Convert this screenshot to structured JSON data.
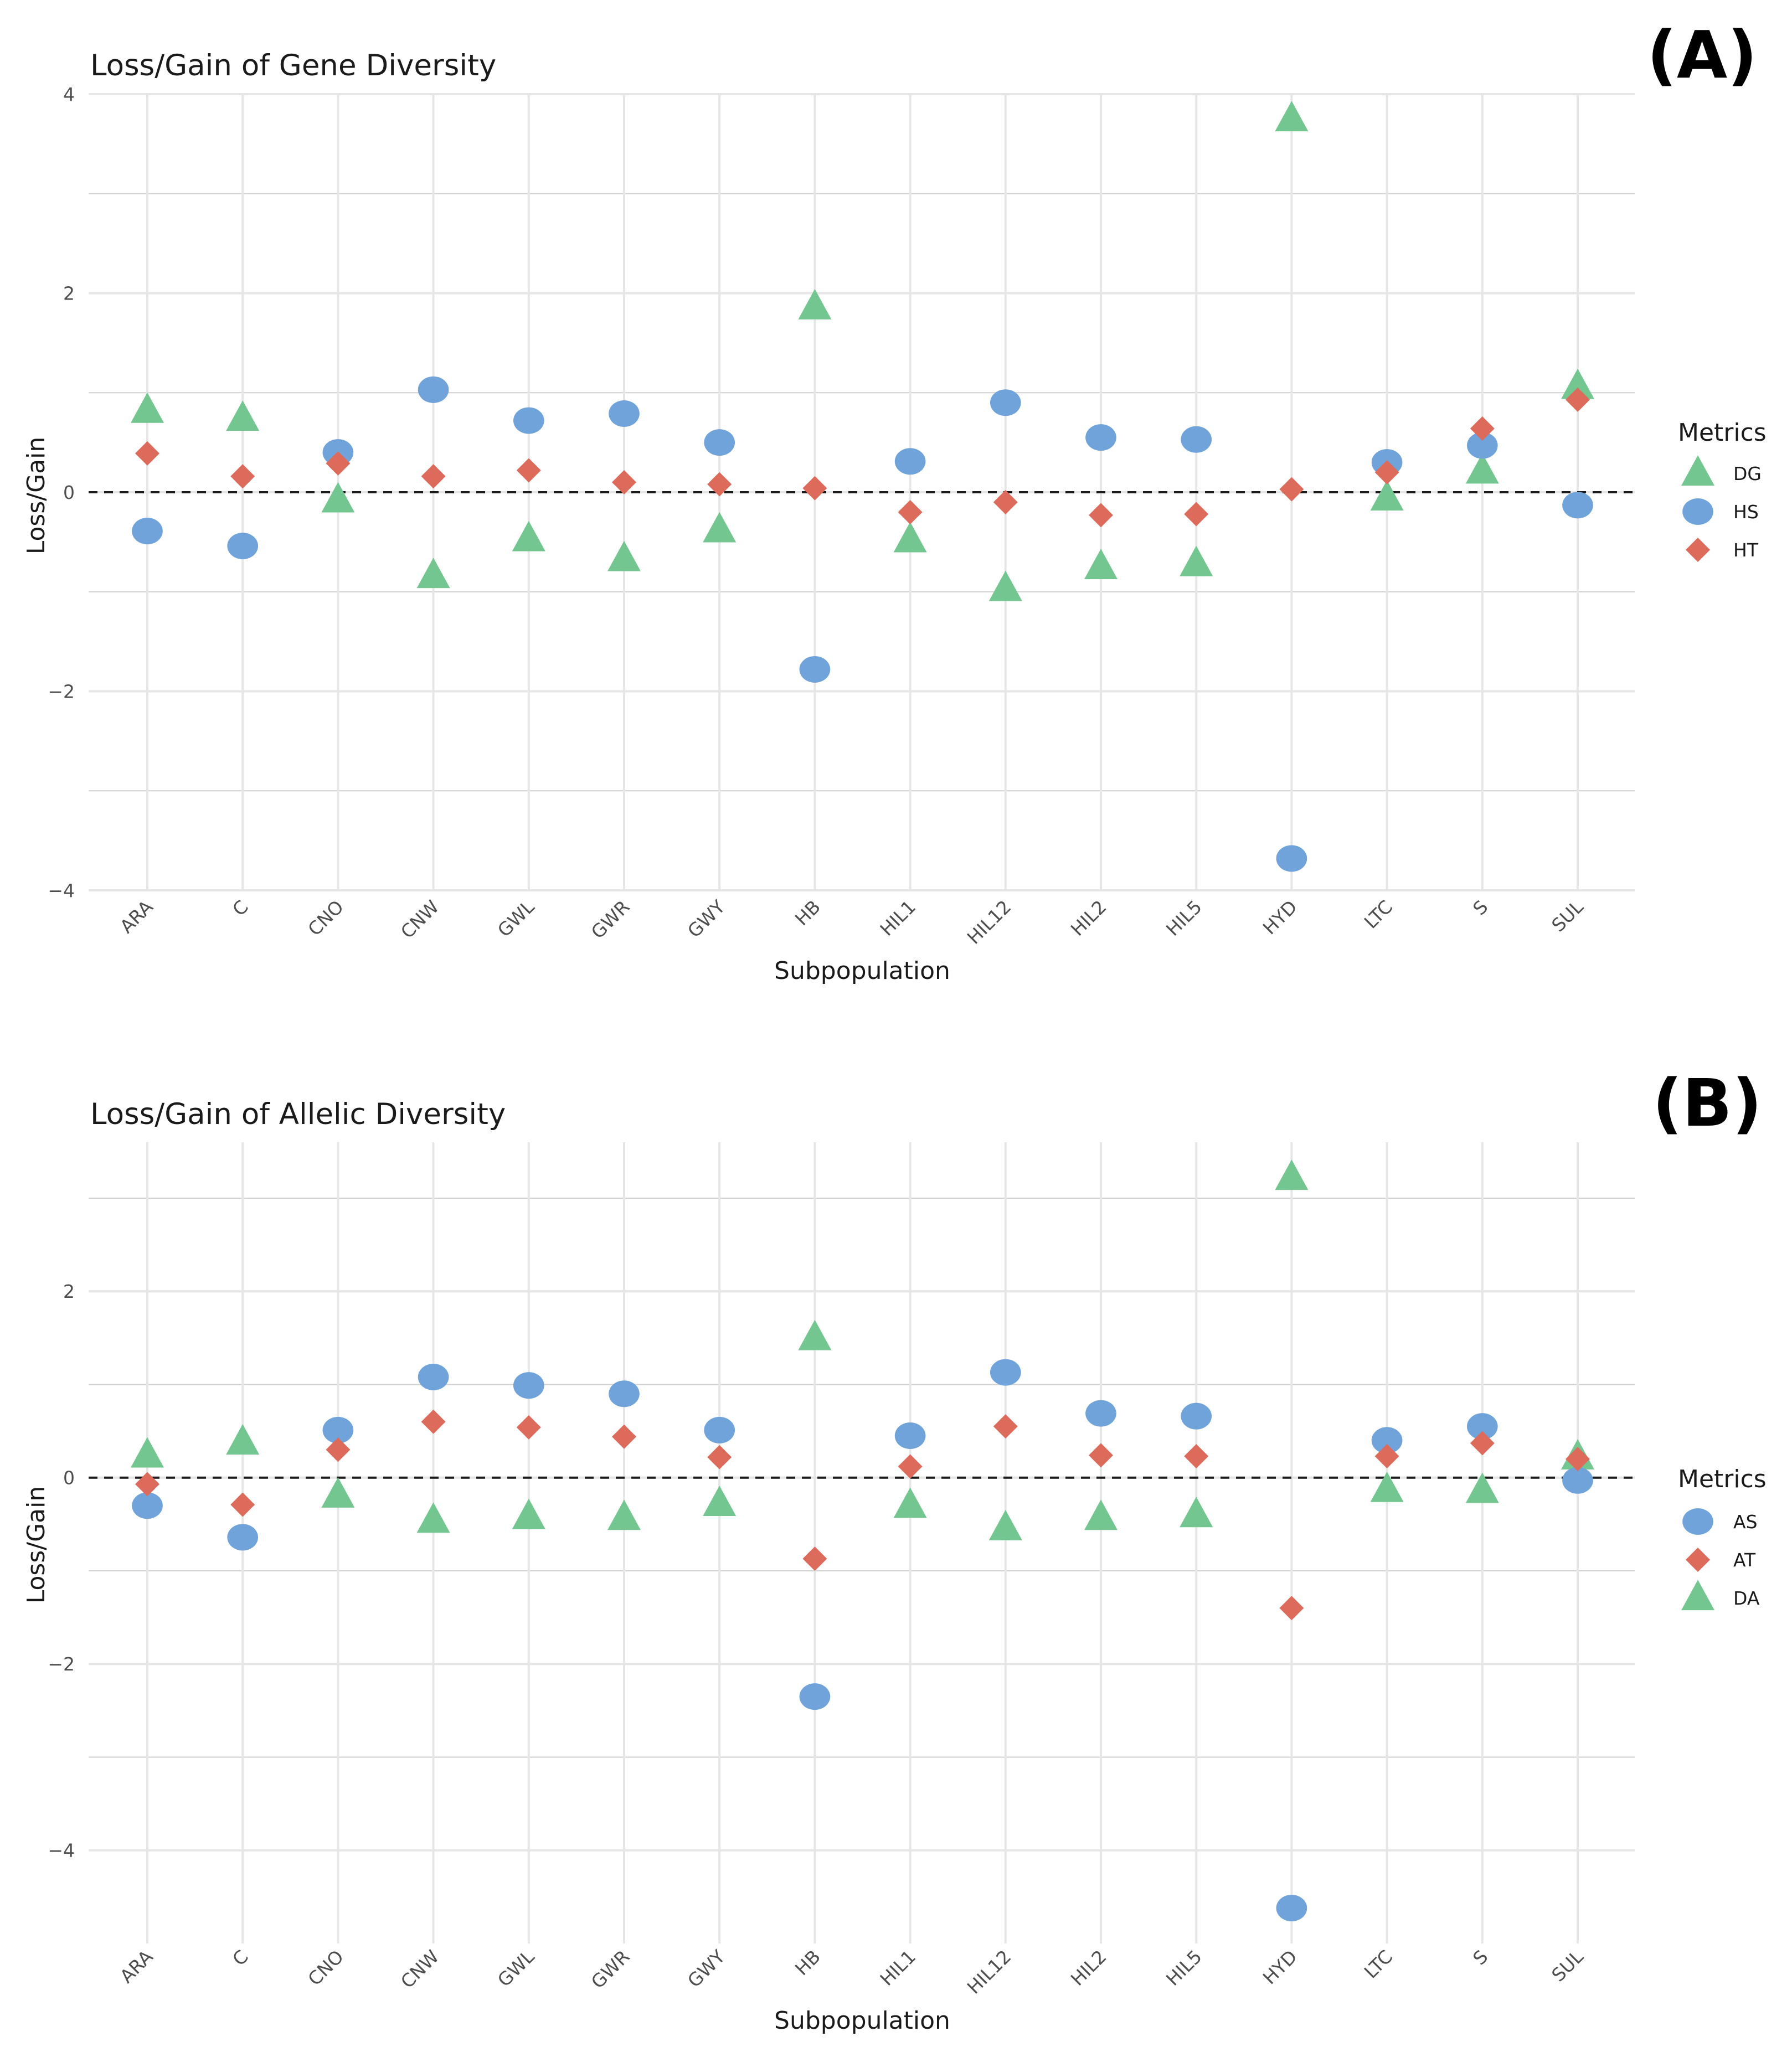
{
  "colors": {
    "green": "#74c690",
    "blue": "#6fa3da",
    "red": "#dc6b5c",
    "grid": "#e6e6e6",
    "grid_major": "#d0d0d0"
  },
  "chart_data": [
    {
      "type": "scatter",
      "tag": "(A)",
      "title": "Loss/Gain of Gene Diversity",
      "xlabel": "Subpopulation",
      "ylabel": "Loss/Gain",
      "ylim": [
        -4.0,
        4.0
      ],
      "yticks": [
        -4,
        -2,
        0,
        2,
        4
      ],
      "ytick_labels": [
        "−4",
        "−2",
        "0",
        "2",
        "4"
      ],
      "minor_grid": [
        -3,
        -1,
        1,
        3
      ],
      "hline": 0,
      "categories": [
        "ARA",
        "C",
        "CNO",
        "CNW",
        "GWL",
        "GWR",
        "GWY",
        "HB",
        "HIL1",
        "HIL12",
        "HIL2",
        "HIL5",
        "HYD",
        "LTC",
        "S",
        "SUL"
      ],
      "legend_title": "Metrics",
      "series": [
        {
          "name": "DG",
          "shape": "triangle",
          "color": "#74c690",
          "values": [
            0.82,
            0.74,
            -0.08,
            -0.84,
            -0.47,
            -0.67,
            -0.38,
            1.86,
            -0.48,
            -0.97,
            -0.75,
            -0.72,
            3.75,
            -0.06,
            0.21,
            1.06
          ]
        },
        {
          "name": "HS",
          "shape": "circle",
          "color": "#6fa3da",
          "values": [
            -0.39,
            -0.54,
            0.4,
            1.03,
            0.72,
            0.79,
            0.5,
            -1.78,
            0.31,
            0.9,
            0.55,
            0.53,
            -3.68,
            0.3,
            0.47,
            -0.13
          ]
        },
        {
          "name": "HT",
          "shape": "diamond",
          "color": "#dc6b5c",
          "values": [
            0.39,
            0.16,
            0.29,
            0.16,
            0.22,
            0.1,
            0.08,
            0.04,
            -0.2,
            -0.1,
            -0.23,
            -0.22,
            0.03,
            0.2,
            0.64,
            0.93
          ]
        }
      ]
    },
    {
      "type": "scatter",
      "tag": "(B)",
      "title": "Loss/Gain of Allelic Diversity",
      "xlabel": "Subpopulation",
      "ylabel": "Loss/Gain",
      "ylim": [
        -5.0,
        3.6
      ],
      "yticks": [
        -4,
        -2,
        0,
        2
      ],
      "ytick_labels": [
        "−4",
        "−2",
        "0",
        "2"
      ],
      "minor_grid": [
        -3,
        -1,
        1,
        3
      ],
      "hline": 0,
      "categories": [
        "ARA",
        "C",
        "CNO",
        "CNW",
        "GWL",
        "GWR",
        "GWY",
        "HB",
        "HIL1",
        "HIL12",
        "HIL2",
        "HIL5",
        "HYD",
        "LTC",
        "S",
        "SUL"
      ],
      "legend_title": "Metrics",
      "series": [
        {
          "name": "AS",
          "shape": "circle",
          "color": "#6fa3da",
          "values": [
            -0.3,
            -0.64,
            0.51,
            1.08,
            0.99,
            0.9,
            0.51,
            -2.35,
            0.45,
            1.13,
            0.69,
            0.66,
            -4.62,
            0.4,
            0.55,
            -0.03
          ]
        },
        {
          "name": "AT",
          "shape": "diamond",
          "color": "#dc6b5c",
          "values": [
            -0.07,
            -0.29,
            0.3,
            0.6,
            0.54,
            0.44,
            0.22,
            -0.87,
            0.12,
            0.55,
            0.24,
            0.23,
            -1.4,
            0.23,
            0.37,
            0.2
          ]
        },
        {
          "name": "DA",
          "shape": "triangle",
          "color": "#74c690",
          "values": [
            0.24,
            0.38,
            -0.19,
            -0.46,
            -0.42,
            -0.43,
            -0.28,
            1.5,
            -0.3,
            -0.54,
            -0.43,
            -0.4,
            3.22,
            -0.13,
            -0.14,
            0.22
          ]
        }
      ]
    }
  ]
}
